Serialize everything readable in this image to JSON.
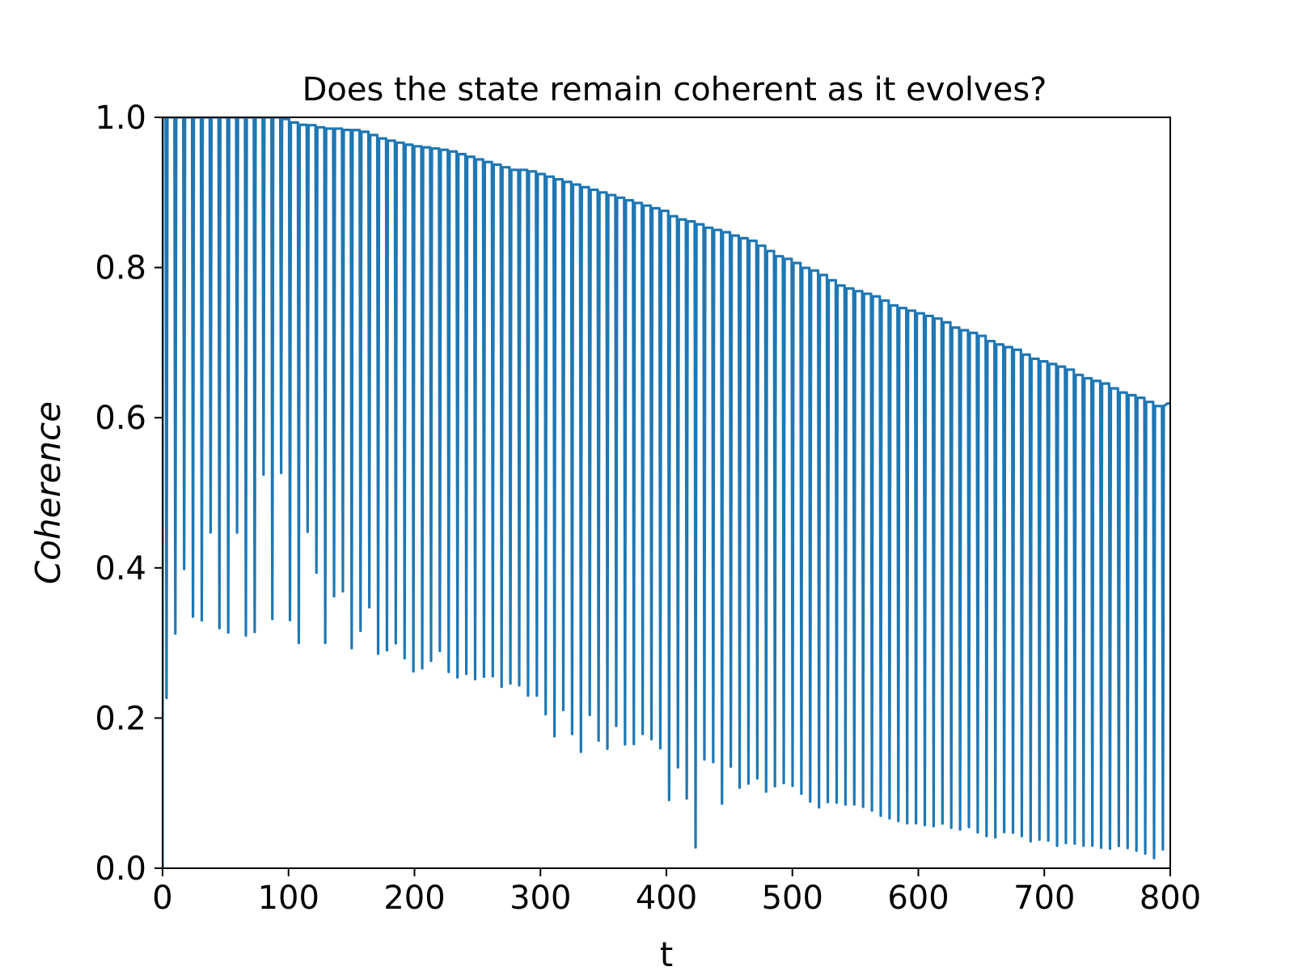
{
  "chart_data": {
    "type": "line",
    "title": "Does the state remain coherent as it evolves?",
    "xlabel": "t",
    "ylabel": "Coherence",
    "xlim": [
      0,
      800
    ],
    "ylim": [
      0.0,
      1.0
    ],
    "xticks": [
      "0",
      "100",
      "200",
      "300",
      "400",
      "500",
      "600",
      "700",
      "800"
    ],
    "yticks": [
      "0.0",
      "0.2",
      "0.4",
      "0.6",
      "0.8",
      "1.0"
    ],
    "grid": false,
    "legend": false,
    "series": [
      {
        "color": "#1f77b4",
        "description_points": {
          "x": [
            0,
            5,
            10,
            16,
            23,
            30,
            38,
            45,
            52,
            58,
            66,
            73,
            80,
            86,
            95,
            102,
            110,
            118,
            125,
            132,
            140,
            148,
            155,
            163,
            170,
            178,
            185,
            192,
            200,
            210,
            220,
            230,
            240,
            250,
            260,
            270,
            280,
            290,
            300,
            310,
            320,
            330,
            340,
            350,
            360,
            370,
            380,
            390,
            400,
            404,
            410,
            424,
            430,
            440,
            445,
            450,
            460,
            470,
            480,
            490,
            500,
            510,
            520,
            530,
            540,
            550,
            560,
            570,
            580,
            590,
            600,
            610,
            620,
            630,
            640,
            650,
            660,
            670,
            680,
            690,
            700,
            710,
            720,
            730,
            740,
            750,
            760,
            770,
            780,
            785,
            790,
            800
          ],
          "peak": [
            1.0,
            1.0,
            1.0,
            1.0,
            1.0,
            1.0,
            1.0,
            1.0,
            1.0,
            1.0,
            1.0,
            1.0,
            1.0,
            1.0,
            1.0,
            0.995,
            0.99,
            0.99,
            0.987,
            0.985,
            0.985,
            0.983,
            0.983,
            0.98,
            0.975,
            0.97,
            0.968,
            0.965,
            0.962,
            0.96,
            0.958,
            0.955,
            0.95,
            0.945,
            0.94,
            0.935,
            0.93,
            0.93,
            0.925,
            0.92,
            0.915,
            0.91,
            0.905,
            0.9,
            0.895,
            0.89,
            0.885,
            0.88,
            0.875,
            0.87,
            0.865,
            0.86,
            0.855,
            0.85,
            0.85,
            0.845,
            0.84,
            0.835,
            0.825,
            0.815,
            0.81,
            0.8,
            0.795,
            0.785,
            0.775,
            0.77,
            0.765,
            0.76,
            0.75,
            0.745,
            0.74,
            0.735,
            0.73,
            0.72,
            0.715,
            0.71,
            0.7,
            0.695,
            0.69,
            0.68,
            0.675,
            0.67,
            0.665,
            0.655,
            0.65,
            0.645,
            0.635,
            0.63,
            0.625,
            0.62,
            0.615,
            0.62
          ],
          "trough": [
            0.0,
            0.36,
            0.31,
            0.41,
            0.34,
            0.31,
            0.45,
            0.32,
            0.31,
            0.47,
            0.31,
            0.31,
            0.53,
            0.3,
            0.55,
            0.3,
            0.3,
            0.53,
            0.3,
            0.3,
            0.42,
            0.29,
            0.3,
            0.36,
            0.285,
            0.29,
            0.3,
            0.28,
            0.26,
            0.27,
            0.29,
            0.25,
            0.26,
            0.25,
            0.26,
            0.24,
            0.25,
            0.23,
            0.23,
            0.17,
            0.22,
            0.14,
            0.21,
            0.145,
            0.19,
            0.155,
            0.18,
            0.17,
            0.15,
            0.04,
            0.15,
            0.02,
            0.145,
            0.14,
            0.075,
            0.14,
            0.1,
            0.125,
            0.1,
            0.115,
            0.11,
            0.095,
            0.08,
            0.09,
            0.085,
            0.085,
            0.08,
            0.07,
            0.065,
            0.06,
            0.06,
            0.055,
            0.06,
            0.05,
            0.055,
            0.045,
            0.04,
            0.05,
            0.045,
            0.035,
            0.04,
            0.03,
            0.035,
            0.03,
            0.03,
            0.025,
            0.03,
            0.025,
            0.02,
            0.005,
            0.025,
            0.025
          ]
        }
      }
    ],
    "oscillation_period": 7
  }
}
